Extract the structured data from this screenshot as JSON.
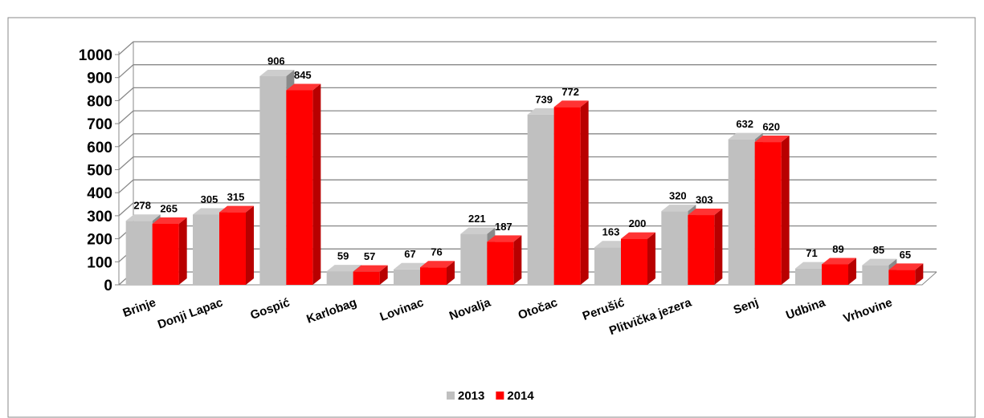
{
  "chart_data": {
    "type": "bar3d",
    "categories": [
      "Brinje",
      "Donji Lapac",
      "Gospić",
      "Karlobag",
      "Lovinac",
      "Novalja",
      "Otočac",
      "Perušić",
      "Plitvička jezera",
      "Senj",
      "Udbina",
      "Vrhovine"
    ],
    "series": [
      {
        "name": "2013",
        "color": "#c0c0c0",
        "values": [
          278,
          305,
          906,
          59,
          67,
          221,
          739,
          163,
          320,
          632,
          71,
          85
        ]
      },
      {
        "name": "2014",
        "color": "#ff0000",
        "values": [
          265,
          315,
          845,
          57,
          76,
          187,
          772,
          200,
          303,
          620,
          89,
          65
        ]
      }
    ],
    "ylim": [
      0,
      1000
    ],
    "yticks": [
      0,
      100,
      200,
      300,
      400,
      500,
      600,
      700,
      800,
      900,
      1000
    ],
    "grid": true,
    "legend": "bottom"
  }
}
